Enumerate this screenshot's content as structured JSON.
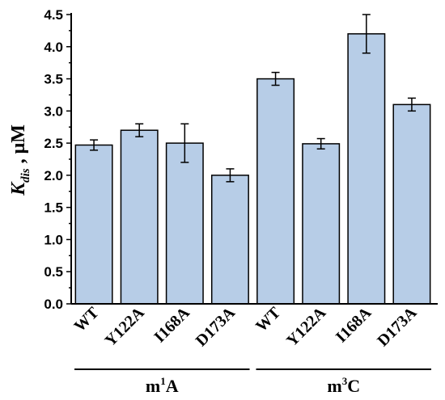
{
  "chart_data": {
    "type": "bar",
    "categories": [
      "WT",
      "Y122A",
      "I168A",
      "D173A",
      "WT",
      "Y122A",
      "I168A",
      "D173A"
    ],
    "values": [
      2.47,
      2.7,
      2.5,
      2.0,
      3.5,
      2.49,
      4.2,
      3.1
    ],
    "errors": [
      0.08,
      0.1,
      0.3,
      0.1,
      0.1,
      0.08,
      0.3,
      0.1
    ],
    "groups": [
      {
        "base": "m",
        "sup": "1",
        "rest": "A",
        "members": [
          0,
          1,
          2,
          3
        ]
      },
      {
        "base": "m",
        "sup": "3",
        "rest": "C",
        "members": [
          4,
          5,
          6,
          7
        ]
      }
    ],
    "ylabel": {
      "main": "K",
      "sub": "dis",
      "rest": " , μM"
    },
    "ylim": [
      0,
      4.5
    ],
    "yticks": [
      "0.0",
      "0.5",
      "1.0",
      "1.5",
      "2.0",
      "2.5",
      "3.0",
      "3.5",
      "4.0",
      "4.5"
    ],
    "bar_color": "#b7cde7",
    "bar_edge": "#000000",
    "grid": false
  }
}
